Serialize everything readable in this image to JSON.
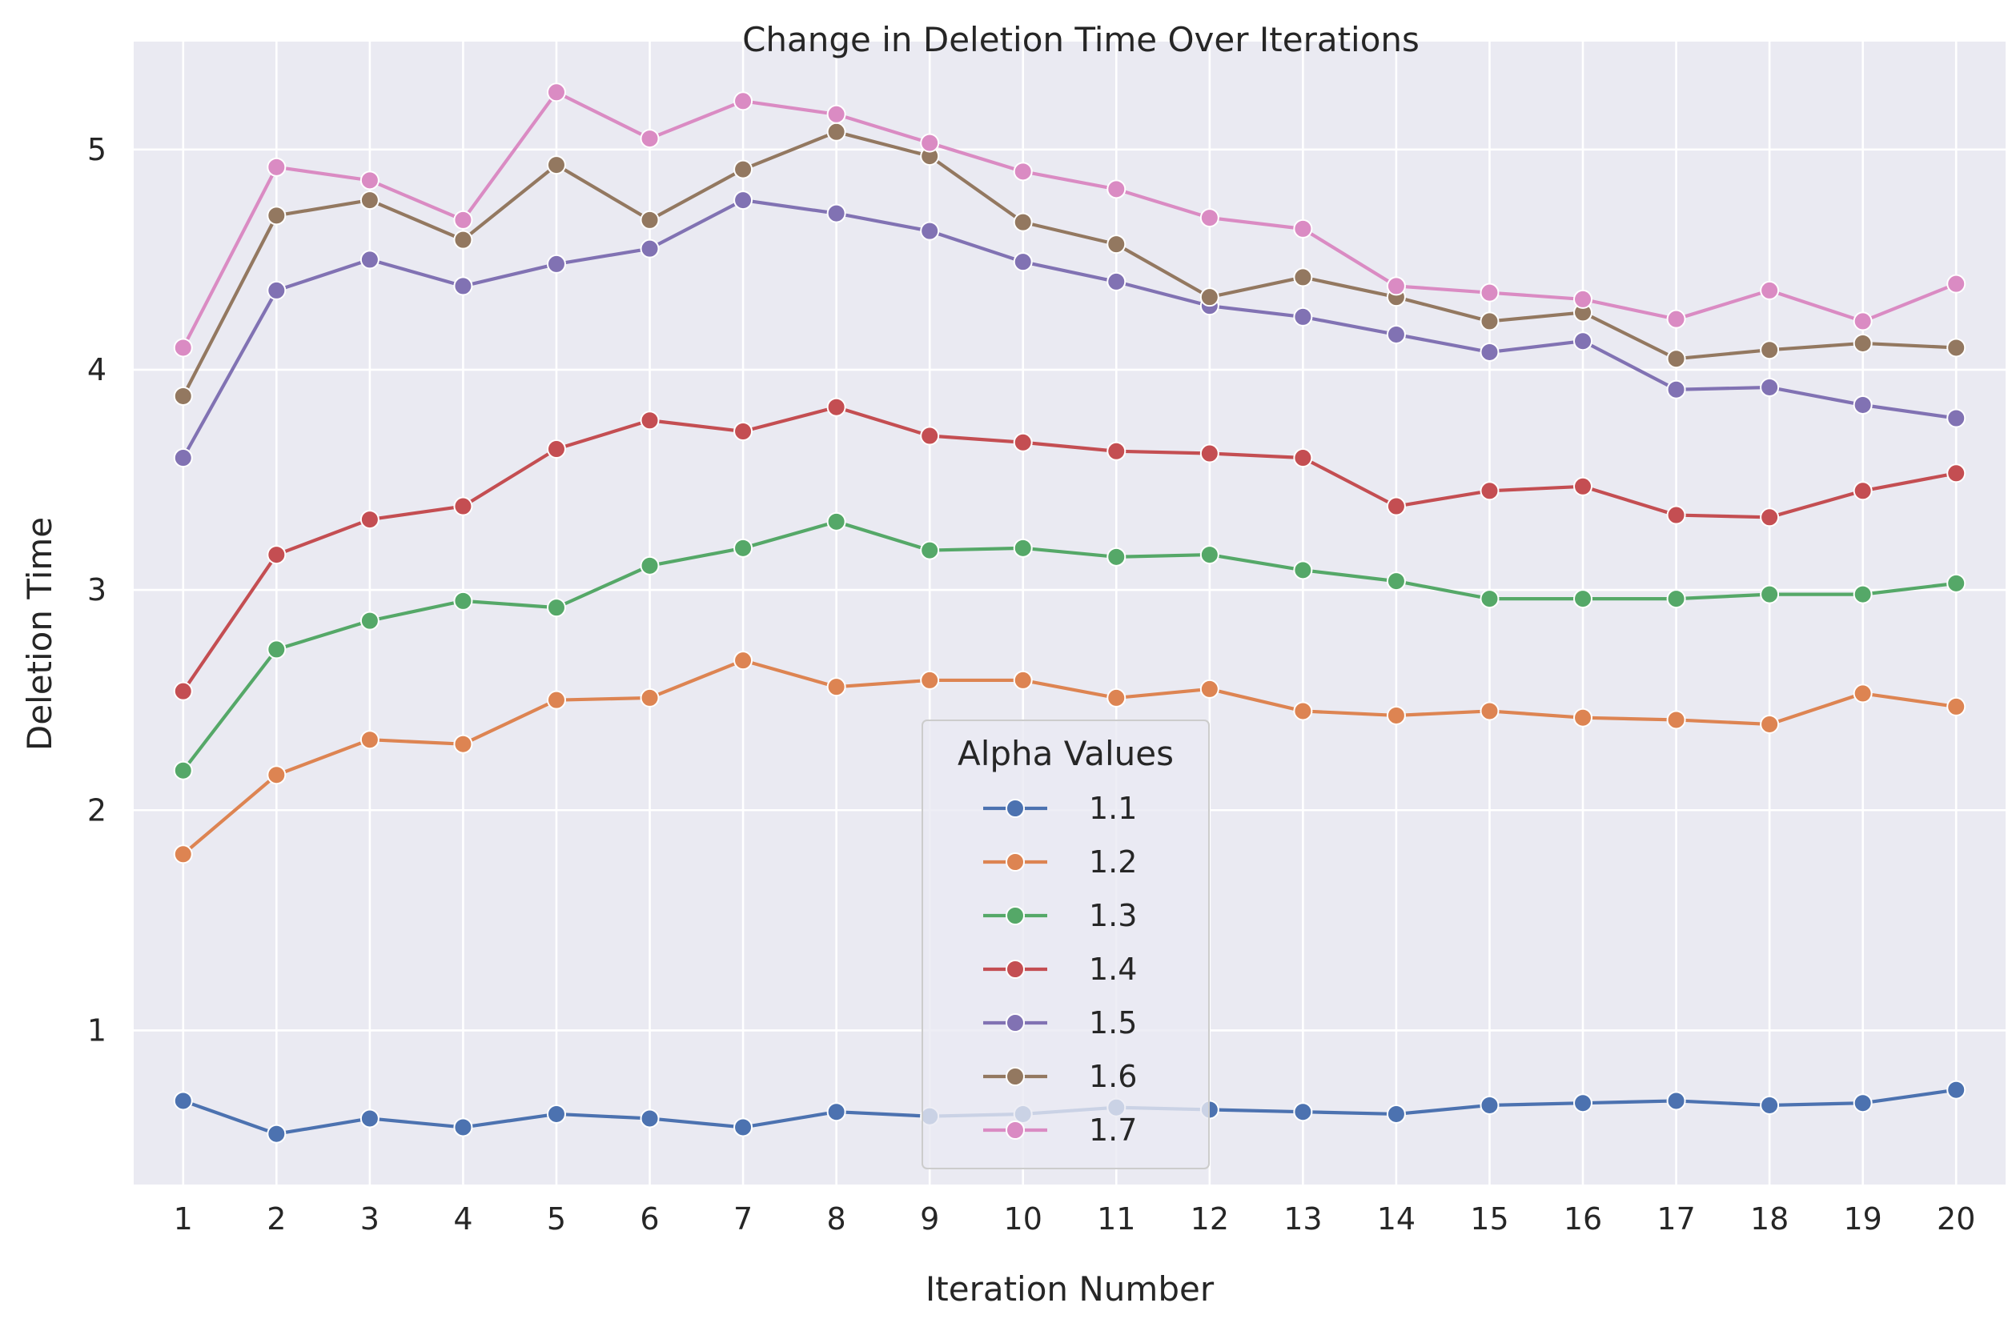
{
  "chart_data": {
    "type": "line",
    "title": "Change in Deletion Time Over Iterations",
    "xlabel": "Iteration Number",
    "ylabel": "Deletion Time",
    "x": [
      1,
      2,
      3,
      4,
      5,
      6,
      7,
      8,
      9,
      10,
      11,
      12,
      13,
      14,
      15,
      16,
      17,
      18,
      19,
      20
    ],
    "xlim": [
      0.47,
      20.53
    ],
    "ylim": [
      0.3,
      5.49
    ],
    "yticks": [
      1,
      2,
      3,
      4,
      5
    ],
    "grid": true,
    "background": "#eaeaf2",
    "legend": {
      "title": "Alpha Values",
      "placement": "lower-center"
    },
    "series": [
      {
        "name": "1.1",
        "color": "#4c72b0",
        "values": [
          0.68,
          0.53,
          0.6,
          0.56,
          0.62,
          0.6,
          0.56,
          0.63,
          0.61,
          0.62,
          0.65,
          0.64,
          0.63,
          0.62,
          0.66,
          0.67,
          0.68,
          0.66,
          0.67,
          0.73
        ]
      },
      {
        "name": "1.2",
        "color": "#dd8452",
        "values": [
          1.8,
          2.16,
          2.32,
          2.3,
          2.5,
          2.51,
          2.68,
          2.56,
          2.59,
          2.59,
          2.51,
          2.55,
          2.45,
          2.43,
          2.45,
          2.42,
          2.41,
          2.39,
          2.53,
          2.47
        ]
      },
      {
        "name": "1.3",
        "color": "#55a868",
        "values": [
          2.18,
          2.73,
          2.86,
          2.95,
          2.92,
          3.11,
          3.19,
          3.31,
          3.18,
          3.19,
          3.15,
          3.16,
          3.09,
          3.04,
          2.96,
          2.96,
          2.96,
          2.98,
          2.98,
          3.03
        ]
      },
      {
        "name": "1.4",
        "color": "#c44e52",
        "values": [
          2.54,
          3.16,
          3.32,
          3.38,
          3.64,
          3.77,
          3.72,
          3.83,
          3.7,
          3.67,
          3.63,
          3.62,
          3.6,
          3.38,
          3.45,
          3.47,
          3.34,
          3.33,
          3.45,
          3.53
        ]
      },
      {
        "name": "1.5",
        "color": "#8172b3",
        "values": [
          3.6,
          4.36,
          4.5,
          4.38,
          4.48,
          4.55,
          4.77,
          4.71,
          4.63,
          4.49,
          4.4,
          4.29,
          4.24,
          4.16,
          4.08,
          4.13,
          3.91,
          3.92,
          3.84,
          3.78
        ]
      },
      {
        "name": "1.6",
        "color": "#937860",
        "values": [
          3.88,
          4.7,
          4.77,
          4.59,
          4.93,
          4.68,
          4.91,
          5.08,
          4.97,
          4.67,
          4.57,
          4.33,
          4.42,
          4.33,
          4.22,
          4.26,
          4.05,
          4.09,
          4.12,
          4.1
        ]
      },
      {
        "name": "1.7",
        "color": "#da8bc3",
        "values": [
          4.1,
          4.92,
          4.86,
          4.68,
          5.26,
          5.05,
          5.22,
          5.16,
          5.03,
          4.9,
          4.82,
          4.69,
          4.64,
          4.38,
          4.35,
          4.32,
          4.23,
          4.36,
          4.22,
          4.39
        ]
      }
    ]
  }
}
